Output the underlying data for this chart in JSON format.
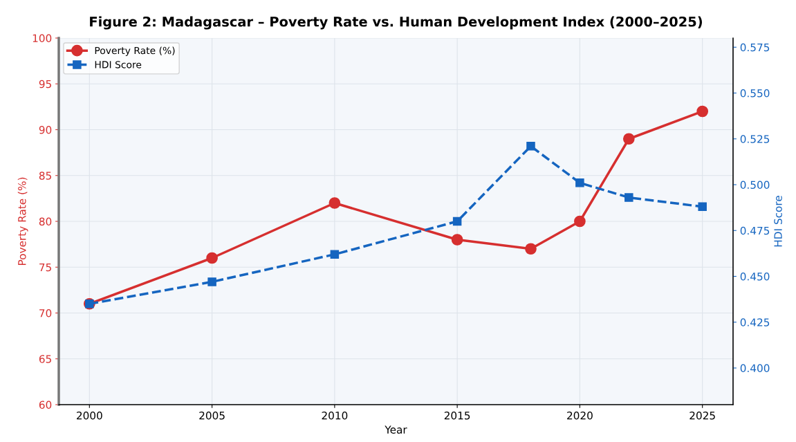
{
  "chart_data": {
    "type": "line",
    "title": "Figure 2: Madagascar – Poverty Rate vs. Human Development Index (2000–2025)",
    "xlabel": "Year",
    "ylabel": "Poverty Rate (%)",
    "y2label": "HDI Score",
    "x": [
      2000,
      2005,
      2010,
      2015,
      2018,
      2020,
      2022,
      2025
    ],
    "series": [
      {
        "name": "Poverty Rate (%)",
        "color": "#d62f2f",
        "values": [
          71,
          76,
          82,
          78,
          77,
          80,
          89,
          92
        ],
        "marker": "circle",
        "line_style": "solid"
      },
      {
        "name": "HDI Score",
        "color": "#1565c0",
        "values": [
          0.435,
          0.447,
          0.462,
          0.48,
          0.521,
          0.501,
          0.493,
          0.488
        ],
        "axis": "y2",
        "marker": "square",
        "line_style": "dashed"
      }
    ],
    "xlim": [
      1998.75,
      2026.25
    ],
    "xticks": [
      2000,
      2005,
      2010,
      2015,
      2020,
      2025
    ],
    "ylim": [
      60,
      100
    ],
    "yticks": [
      60,
      65,
      70,
      75,
      80,
      85,
      90,
      95,
      100
    ],
    "y2lim": [
      0.38,
      0.58
    ],
    "y2ticks": [
      {
        "value": 0.4,
        "label": "0.400"
      },
      {
        "value": 0.425,
        "label": "0.425"
      },
      {
        "value": 0.45,
        "label": "0.450"
      },
      {
        "value": 0.475,
        "label": "0.475"
      },
      {
        "value": 0.5,
        "label": "0.500"
      },
      {
        "value": 0.525,
        "label": "0.525"
      },
      {
        "value": 0.55,
        "label": "0.550"
      },
      {
        "value": 0.575,
        "label": "0.575"
      }
    ],
    "grid": true,
    "legend": "top left"
  }
}
